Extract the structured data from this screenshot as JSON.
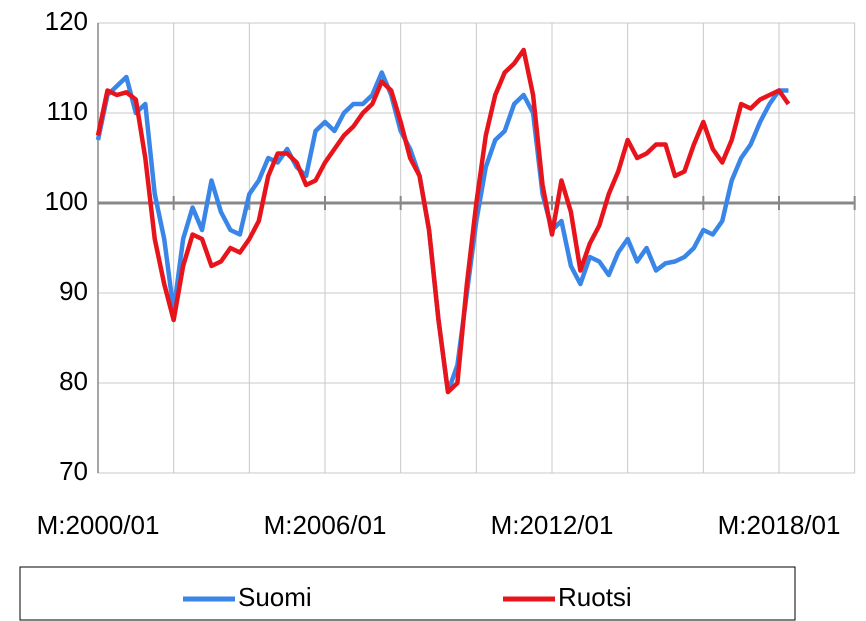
{
  "chart_data": {
    "type": "line",
    "categories": [
      "M:2000/01",
      null,
      null,
      null,
      null,
      null,
      null,
      null,
      null,
      null,
      null,
      null,
      null,
      null,
      null,
      null,
      null,
      null,
      null,
      null,
      null,
      null,
      null,
      null,
      "M:2006/01",
      null,
      null,
      null,
      null,
      null,
      null,
      null,
      null,
      null,
      null,
      null,
      null,
      null,
      null,
      null,
      null,
      null,
      null,
      null,
      null,
      null,
      null,
      null,
      "M:2012/01",
      null,
      null,
      null,
      null,
      null,
      null,
      null,
      null,
      null,
      null,
      null,
      null,
      null,
      null,
      null,
      null,
      null,
      null,
      null,
      null,
      null,
      null,
      null,
      "M:2018/01",
      null
    ],
    "series": [
      {
        "name": "Suomi",
        "color": "#3a86e8",
        "values": [
          107,
          112,
          113,
          114,
          110,
          111,
          101,
          96,
          88,
          96,
          99.5,
          97,
          102.5,
          99,
          97,
          96.5,
          101,
          102.5,
          105,
          104.5,
          106,
          104,
          103,
          108,
          109,
          108,
          110,
          111,
          111,
          112,
          114.5,
          112,
          108,
          106,
          103,
          97,
          87,
          79,
          82,
          90,
          98,
          104,
          107,
          108,
          111,
          112,
          110,
          101,
          97,
          98,
          93,
          91,
          94,
          93.5,
          92,
          94.5,
          96,
          93.5,
          95,
          92.5,
          93.3,
          93.5,
          94,
          95,
          97,
          96.5,
          98,
          102.5,
          105,
          106.5,
          109,
          111,
          112.5,
          112.5
        ]
      },
      {
        "name": "Ruotsi",
        "color": "#e8141c",
        "values": [
          107.5,
          112.5,
          112,
          112.3,
          111.5,
          105,
          96,
          91,
          87,
          93,
          96.5,
          96,
          93,
          93.5,
          95,
          94.5,
          96,
          98,
          103,
          105.5,
          105.5,
          104.5,
          102,
          102.5,
          104.5,
          106,
          107.5,
          108.5,
          110,
          111,
          113.5,
          112.5,
          109,
          105,
          103,
          97,
          87,
          79,
          80,
          91,
          100,
          107.5,
          112,
          114.5,
          115.5,
          117,
          112,
          102,
          96.5,
          102.5,
          99,
          92.5,
          95.5,
          97.5,
          101,
          103.5,
          107,
          105,
          105.5,
          106.5,
          106.5,
          103,
          103.5,
          106.5,
          109,
          106,
          104.5,
          107,
          111,
          110.5,
          111.5,
          112,
          112.5,
          111
        ]
      }
    ],
    "ylim": [
      70,
      120
    ],
    "yticks": [
      70,
      80,
      90,
      100,
      110,
      120
    ],
    "x_axis_at": 100,
    "grid": true,
    "legend": "bottom"
  }
}
